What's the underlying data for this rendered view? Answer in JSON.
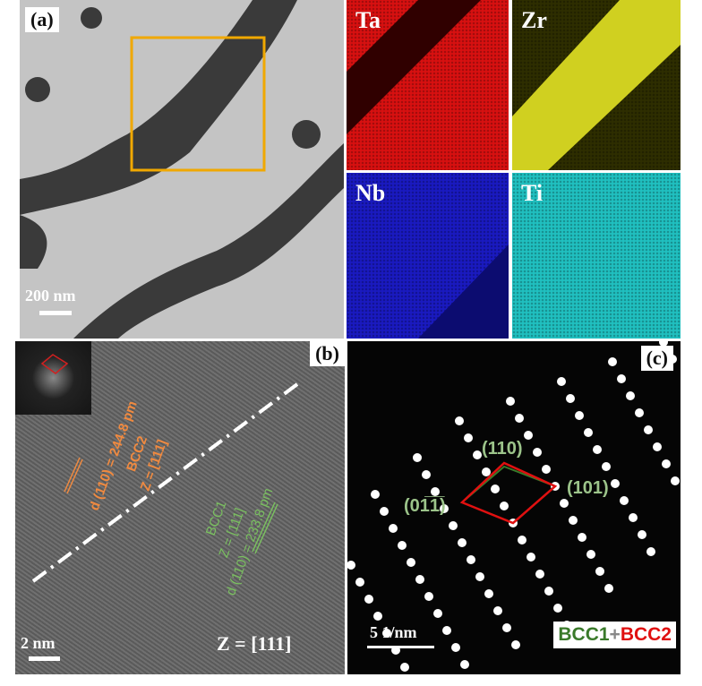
{
  "panel_a": {
    "label": "(a)",
    "scale_bar": "200 nm",
    "box_color": "#f0a800"
  },
  "maps": [
    {
      "element": "Ta",
      "color": "#e01010"
    },
    {
      "element": "Zr",
      "color": "#d8d820"
    },
    {
      "element": "Nb",
      "color": "#1818c8"
    },
    {
      "element": "Ti",
      "color": "#20c8c8"
    }
  ],
  "panel_b": {
    "label": "(b)",
    "scale_bar": "2 nm",
    "zone_axis": "Z = [111]",
    "bcc2": {
      "d": "d (110) = 244.8 pm",
      "phase": "BCC2",
      "z": "Z = [111]",
      "color": "#f08a40"
    },
    "bcc1": {
      "phase": "BCC1",
      "z": "Z = [111]",
      "d": "d (110) = 233.8 pm",
      "color": "#7ac060"
    }
  },
  "panel_c": {
    "label": "(c)",
    "scale_bar": "5 1/nm",
    "spots": [
      "(110)",
      "(101)",
      "(01̅1̅)"
    ],
    "legend": {
      "bcc1": "BCC1",
      "plus": "+",
      "bcc2": "BCC2",
      "bcc1_color": "#3a7a2a",
      "bcc2_color": "#e01010"
    }
  }
}
